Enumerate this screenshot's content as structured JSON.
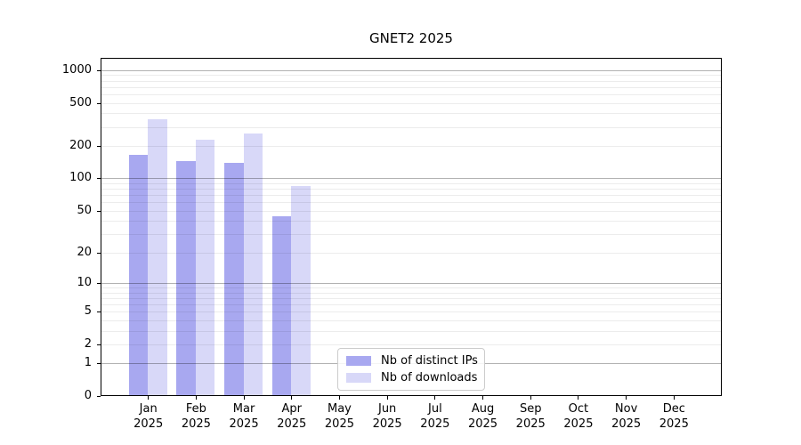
{
  "chart_data": {
    "type": "bar",
    "title": "GNET2 2025",
    "x_categories": [
      "Jan",
      "Feb",
      "Mar",
      "Apr",
      "May",
      "Jun",
      "Jul",
      "Aug",
      "Sep",
      "Oct",
      "Nov",
      "Dec"
    ],
    "x_year_label": "2025",
    "series": [
      {
        "name": "Nb of distinct IPs",
        "color": "#a8a8f0",
        "values": [
          165,
          145,
          140,
          44,
          null,
          null,
          null,
          null,
          null,
          null,
          null,
          null
        ]
      },
      {
        "name": "Nb of downloads",
        "color": "#d8d8f8",
        "values": [
          350,
          230,
          260,
          85,
          null,
          null,
          null,
          null,
          null,
          null,
          null,
          null
        ]
      }
    ],
    "y_scale": "log1p",
    "ylim": [
      0,
      1300
    ],
    "y_ticks": [
      0,
      1,
      2,
      5,
      10,
      20,
      50,
      100,
      200,
      500,
      1000
    ],
    "gridlines": {
      "major": [
        1,
        10,
        100,
        1000
      ],
      "minor": [
        2,
        3,
        4,
        5,
        6,
        7,
        8,
        9,
        20,
        30,
        40,
        50,
        60,
        70,
        80,
        90,
        200,
        300,
        400,
        500,
        600,
        700,
        800,
        900
      ]
    },
    "legend": {
      "position": "inside-bottom-center-left"
    }
  }
}
